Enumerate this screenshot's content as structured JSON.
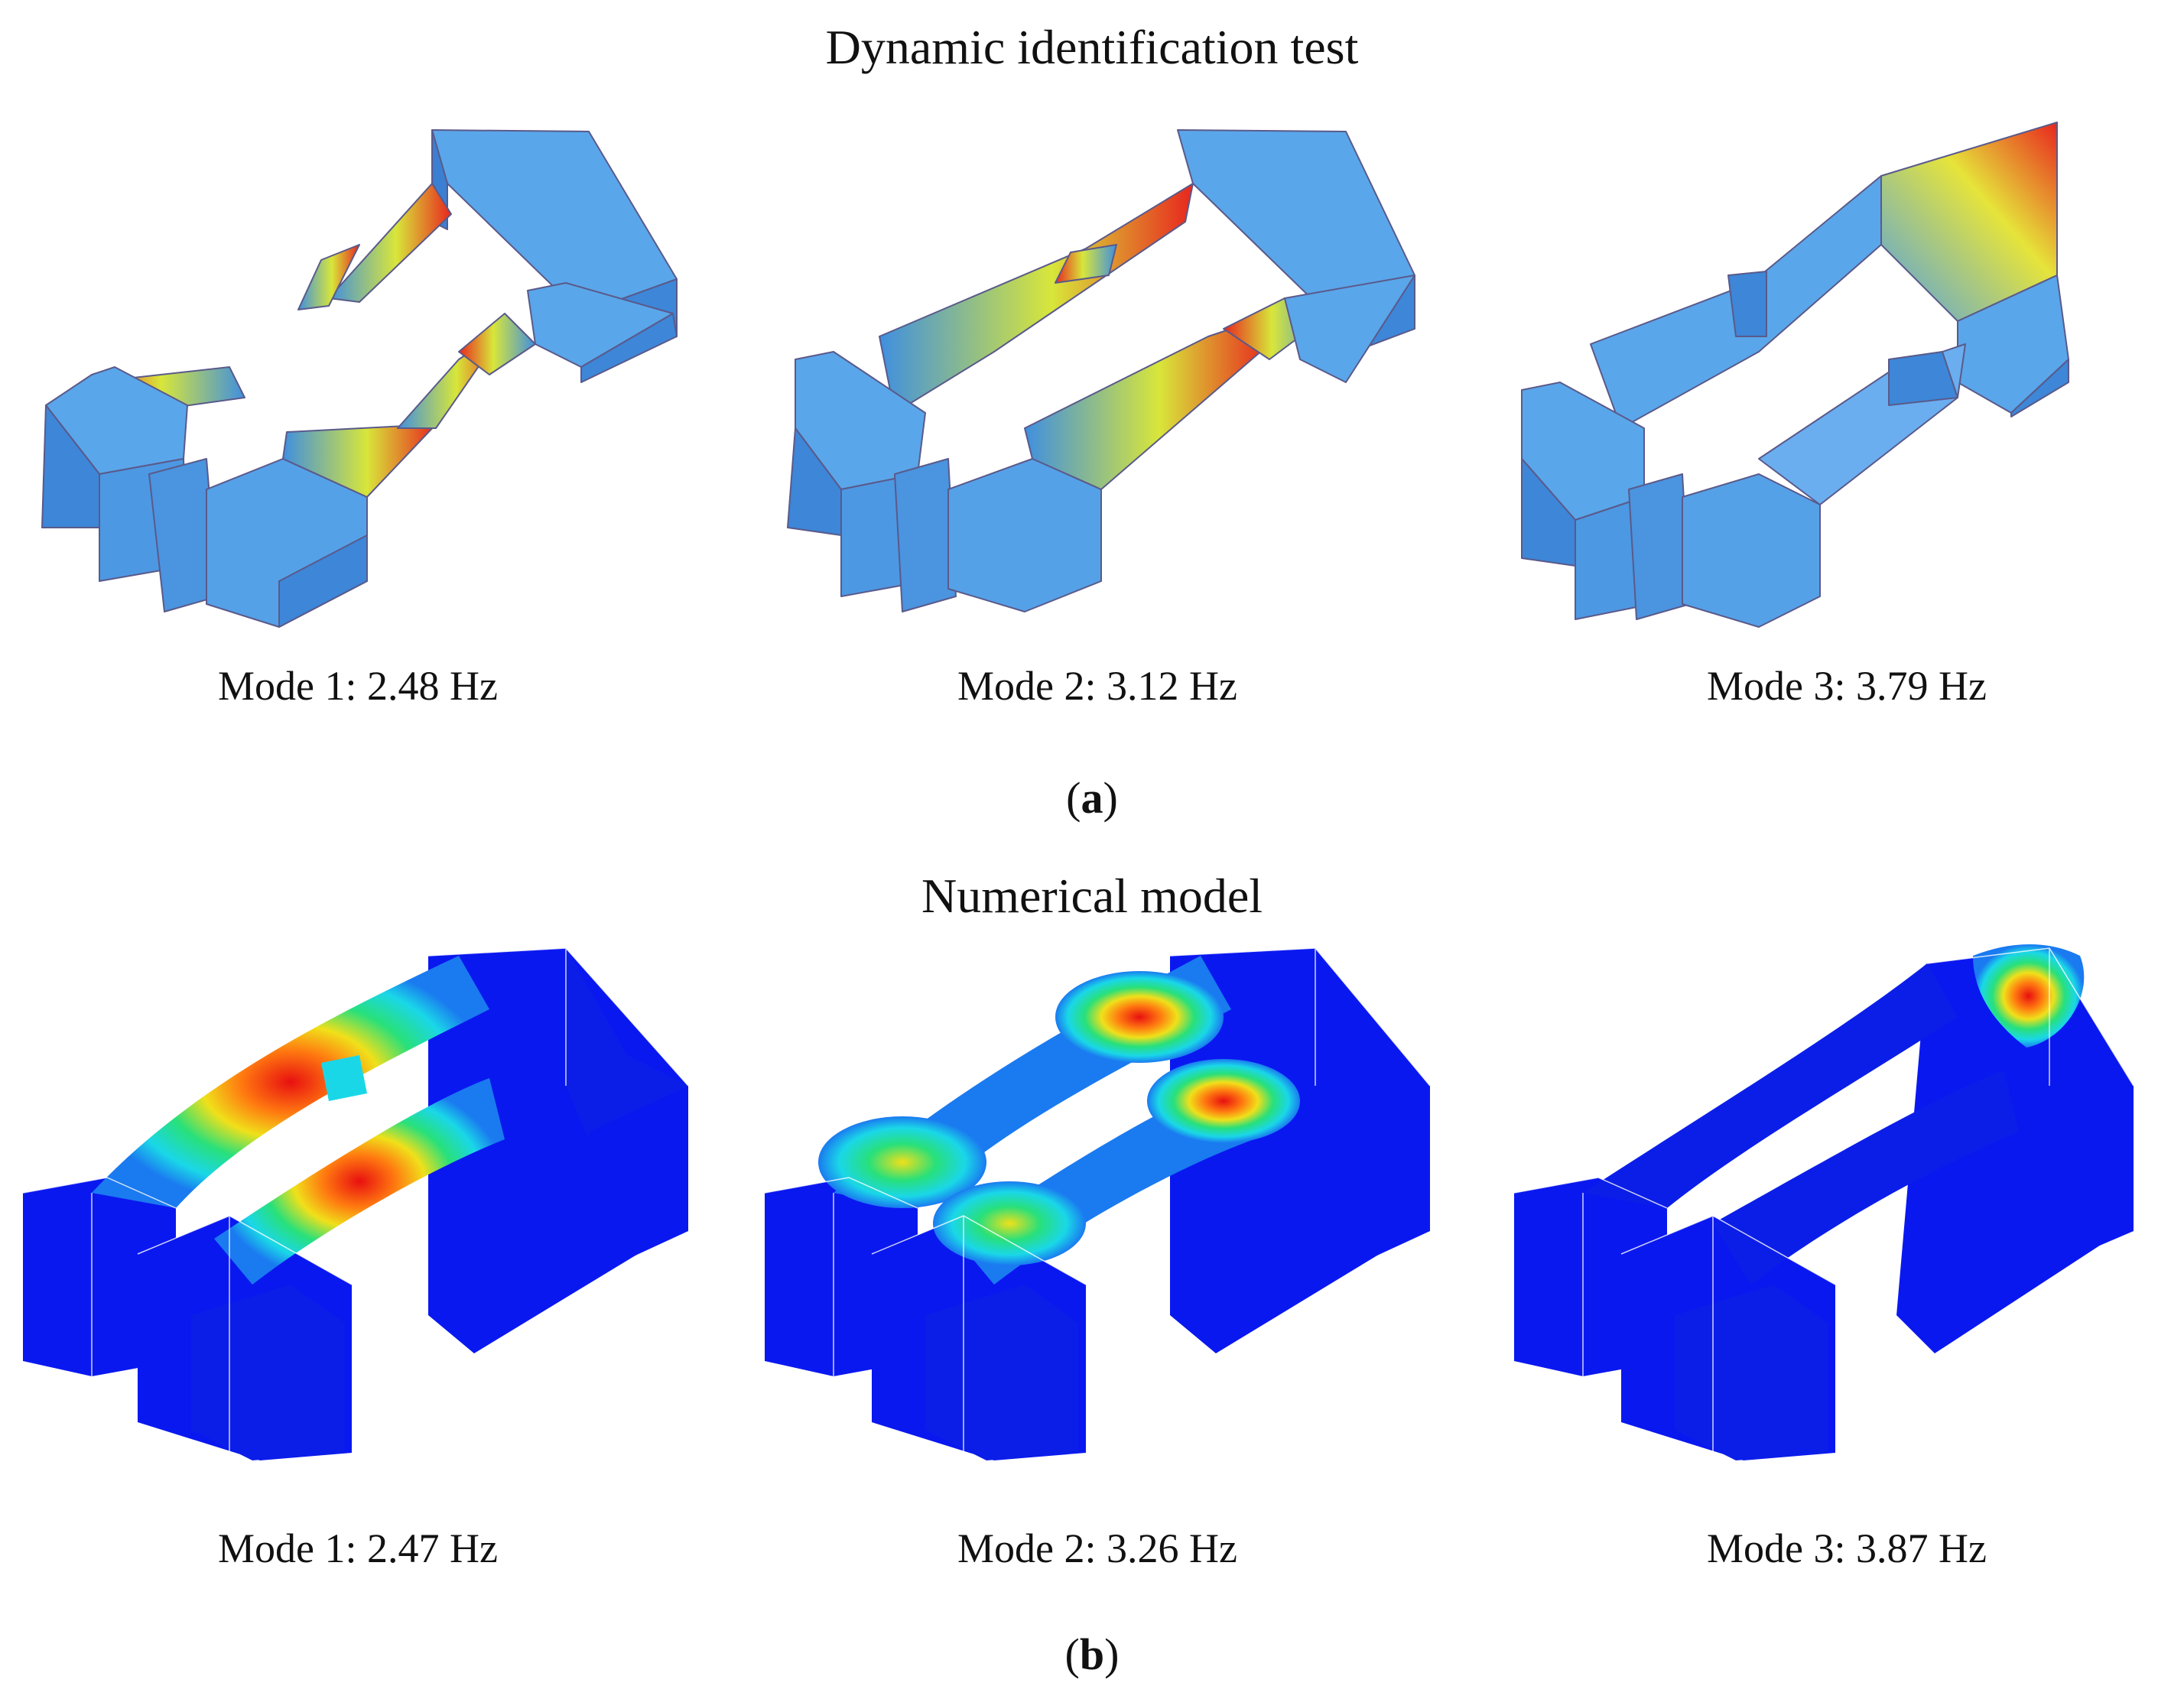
{
  "panel_a": {
    "title": "Dynamic identification test",
    "label_open": "(",
    "label_letter": "a",
    "label_close": ")",
    "modes": [
      {
        "caption": "Mode 1: 2.48 Hz"
      },
      {
        "caption": "Mode 2: 3.12 Hz"
      },
      {
        "caption": "Mode 3: 3.79 Hz"
      }
    ]
  },
  "panel_b": {
    "title": "Numerical model",
    "label_open": "(",
    "label_letter": "b",
    "label_close": ")",
    "modes": [
      {
        "caption": "Mode 1: 2.47 Hz"
      },
      {
        "caption": "Mode 2: 3.26 Hz"
      },
      {
        "caption": "Mode 3: 3.87 Hz"
      }
    ]
  },
  "colors": {
    "wireframe_base": "#3f8fe0",
    "wireframe_mid": "#d8e63a",
    "wireframe_peak": "#e8261e",
    "fem_base": "#0a18f0",
    "fem_cyan": "#1ad7e8",
    "fem_green": "#28e07a",
    "fem_yellow": "#f0e01a",
    "fem_orange": "#ff7a10",
    "fem_red": "#e81010"
  }
}
